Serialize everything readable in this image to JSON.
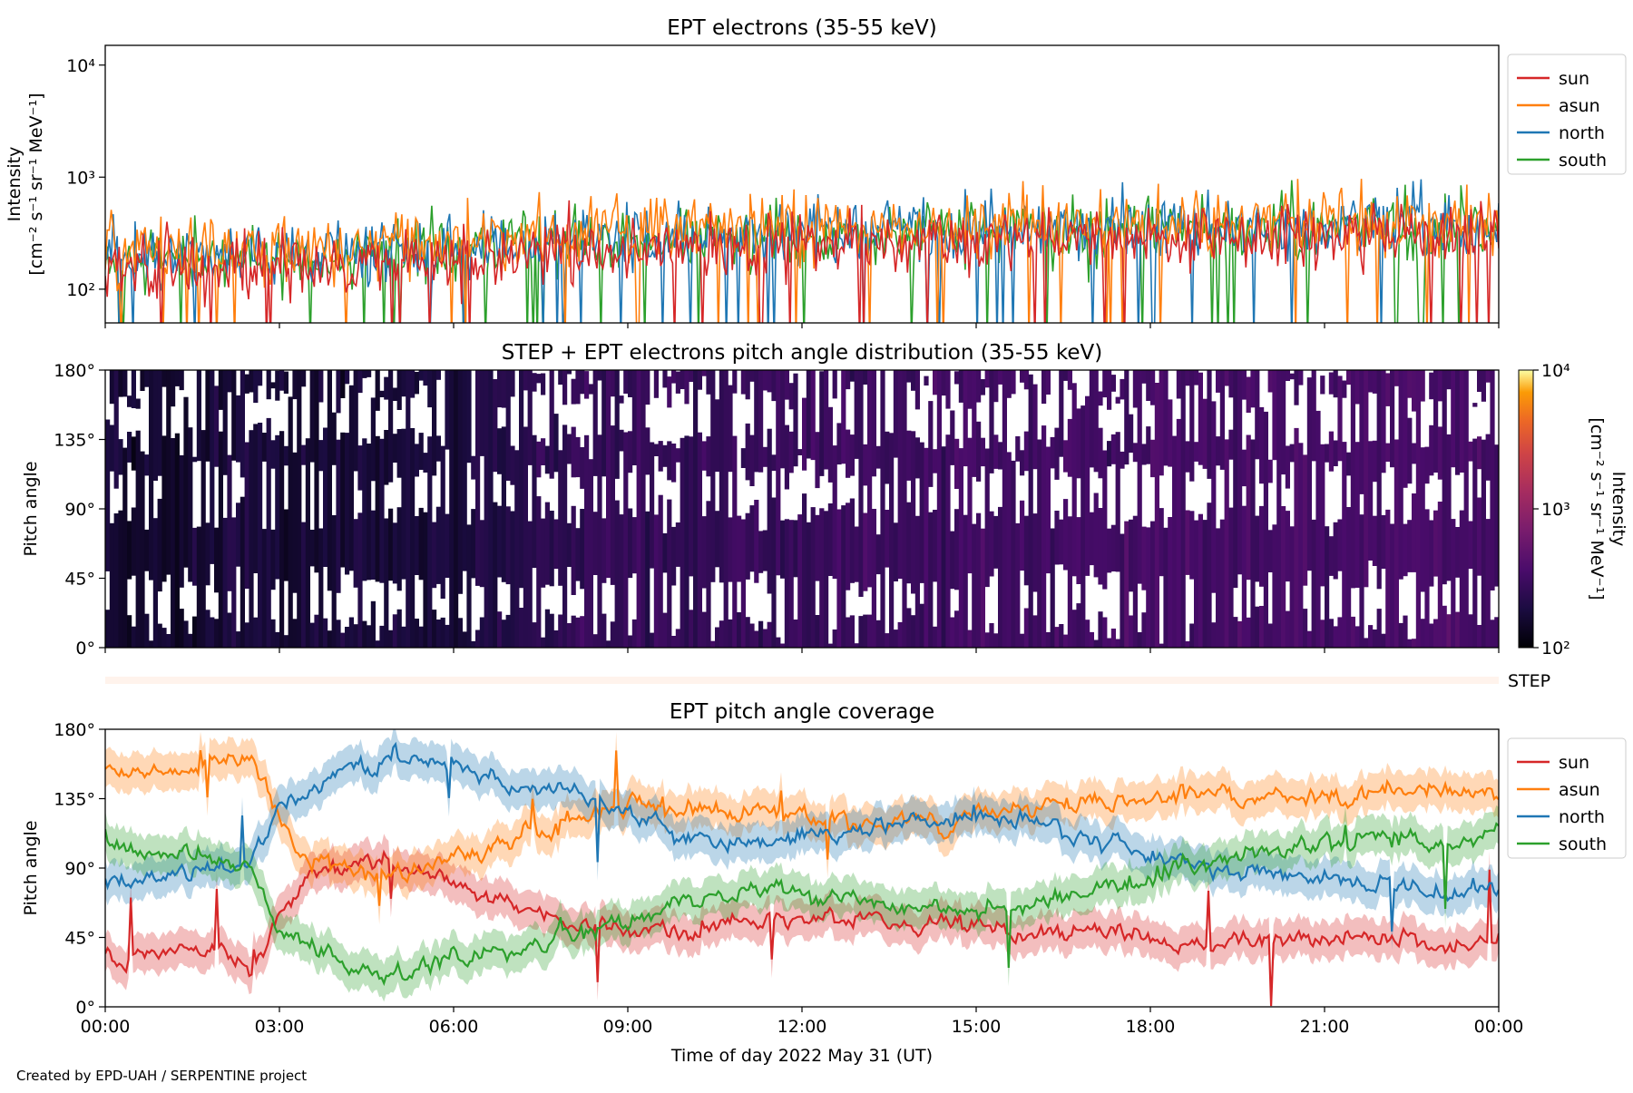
{
  "chart_data": [
    {
      "type": "line",
      "title": "EPT electrons (35-55 keV)",
      "ylabel_line1": "Intensity",
      "ylabel_line2": "[cm⁻² s⁻¹ sr⁻¹ MeV⁻¹]",
      "yscale": "log",
      "ylim": [
        50,
        15000
      ],
      "yticks": [
        100,
        1000,
        10000
      ],
      "ytick_labels": [
        "10²",
        "10³",
        "10⁴"
      ],
      "xlim": [
        "00:00",
        "24:00"
      ],
      "legend_position": "outside-upper-right",
      "series": [
        {
          "name": "sun",
          "color": "#d62728",
          "hourly_values": [
            150,
            160,
            170,
            165,
            160,
            170,
            180,
            200,
            220,
            230,
            235,
            240,
            245,
            250,
            260,
            270,
            280,
            275,
            280,
            285,
            290,
            290,
            295,
            300,
            300
          ]
        },
        {
          "name": "asun",
          "color": "#ff7f0e",
          "hourly_values": [
            220,
            230,
            240,
            235,
            240,
            250,
            270,
            300,
            320,
            330,
            340,
            345,
            350,
            360,
            370,
            380,
            390,
            385,
            390,
            395,
            400,
            395,
            400,
            405,
            400
          ]
        },
        {
          "name": "north",
          "color": "#1f77b4",
          "hourly_values": [
            190,
            200,
            210,
            205,
            210,
            220,
            240,
            270,
            290,
            300,
            305,
            310,
            320,
            330,
            340,
            345,
            350,
            345,
            350,
            360,
            360,
            355,
            360,
            365,
            360
          ]
        },
        {
          "name": "south",
          "color": "#2ca02c",
          "hourly_values": [
            180,
            190,
            200,
            195,
            200,
            210,
            230,
            260,
            280,
            290,
            295,
            300,
            305,
            315,
            325,
            335,
            340,
            335,
            340,
            350,
            350,
            345,
            350,
            355,
            350
          ]
        }
      ]
    },
    {
      "type": "heatmap",
      "title": "STEP + EPT electrons pitch angle distribution (35-55 keV)",
      "ylabel": "Pitch angle",
      "ylim": [
        0,
        180
      ],
      "yticks": [
        0,
        45,
        90,
        135,
        180
      ],
      "ytick_labels": [
        "0°",
        "45°",
        "90°",
        "135°",
        "180°"
      ],
      "xlim": [
        "00:00",
        "24:00"
      ],
      "colorbar": {
        "label_line1": "Intensity",
        "label_line2": "[cm⁻² s⁻¹ sr⁻¹ MeV⁻¹]",
        "scale": "log",
        "range": [
          100,
          10000
        ],
        "tick_labels": [
          "10²",
          "10³",
          "10⁴"
        ],
        "colormap": "inferno"
      },
      "hourly_intensity": [
        160,
        170,
        175,
        170,
        168,
        180,
        200,
        240,
        260,
        270,
        280,
        285,
        290,
        300,
        310,
        320,
        330,
        325,
        330,
        335,
        340,
        340,
        345,
        350
      ]
    },
    {
      "type": "bar",
      "label": "STEP",
      "description_value": "thin coverage strip",
      "color": "#fff3ec"
    },
    {
      "type": "line",
      "title": "EPT pitch angle coverage",
      "xlabel": "Time of day 2022 May 31 (UT)",
      "ylabel": "Pitch angle",
      "ylim": [
        0,
        180
      ],
      "yticks": [
        0,
        45,
        90,
        135,
        180
      ],
      "ytick_labels": [
        "0°",
        "45°",
        "90°",
        "135°",
        "180°"
      ],
      "xticks": [
        0,
        3,
        6,
        9,
        12,
        15,
        18,
        21,
        24
      ],
      "xtick_labels": [
        "00:00",
        "03:00",
        "06:00",
        "09:00",
        "12:00",
        "15:00",
        "18:00",
        "21:00",
        "00:00"
      ],
      "legend_position": "outside-upper-right",
      "series": [
        {
          "name": "sun",
          "color": "#d62728",
          "hours": [
            0,
            1,
            2,
            2.5,
            3,
            3.5,
            4,
            5,
            6,
            7,
            8,
            9,
            10,
            11,
            12,
            13,
            14,
            15,
            16,
            17,
            18,
            19,
            20,
            21,
            22,
            23,
            24
          ],
          "values": [
            30,
            35,
            40,
            20,
            60,
            85,
            90,
            95,
            80,
            65,
            55,
            50,
            50,
            55,
            55,
            60,
            55,
            50,
            45,
            50,
            45,
            40,
            45,
            45,
            45,
            40,
            45
          ]
        },
        {
          "name": "asun",
          "color": "#ff7f0e",
          "hours": [
            0,
            1,
            2,
            2.5,
            3,
            3.5,
            4,
            5,
            6,
            7,
            8,
            9,
            10,
            11,
            12,
            13,
            14,
            15,
            16,
            17,
            18,
            19,
            20,
            21,
            22,
            23,
            24
          ],
          "values": [
            155,
            150,
            160,
            165,
            120,
            95,
            90,
            85,
            95,
            110,
            120,
            130,
            130,
            125,
            125,
            120,
            120,
            125,
            130,
            135,
            135,
            140,
            135,
            135,
            140,
            140,
            135
          ]
        },
        {
          "name": "north",
          "color": "#1f77b4",
          "hours": [
            0,
            1,
            2,
            2.5,
            3,
            3.5,
            4,
            5,
            6,
            7,
            8,
            9,
            10,
            11,
            12,
            13,
            14,
            15,
            16,
            17,
            18,
            19,
            20,
            21,
            22,
            23,
            24
          ],
          "values": [
            80,
            85,
            90,
            95,
            130,
            140,
            150,
            165,
            155,
            145,
            140,
            130,
            110,
            105,
            110,
            115,
            120,
            125,
            120,
            110,
            100,
            90,
            85,
            80,
            80,
            75,
            80
          ]
        },
        {
          "name": "south",
          "color": "#2ca02c",
          "hours": [
            0,
            1,
            2,
            2.5,
            3,
            3.5,
            4,
            5,
            6,
            7,
            8,
            9,
            10,
            11,
            12,
            13,
            14,
            15,
            16,
            17,
            18,
            19,
            20,
            21,
            22,
            23,
            24
          ],
          "values": [
            105,
            100,
            95,
            90,
            50,
            40,
            30,
            20,
            30,
            40,
            45,
            55,
            70,
            75,
            75,
            70,
            65,
            60,
            65,
            75,
            85,
            95,
            100,
            105,
            110,
            105,
            110
          ]
        }
      ]
    }
  ],
  "credit": "Created by EPD-UAH / SERPENTINE project"
}
